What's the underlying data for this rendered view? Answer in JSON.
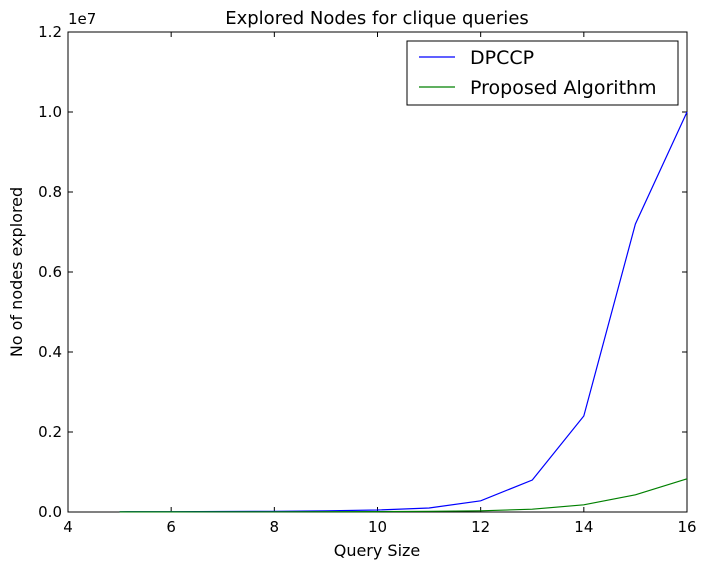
{
  "chart_data": {
    "type": "line",
    "title": "Explored Nodes for clique queries",
    "xlabel": "Query Size",
    "ylabel": "No of nodes explored",
    "y_scale_label": "1e7",
    "xlim": [
      4,
      16
    ],
    "ylim": [
      0,
      12000000
    ],
    "x_ticks": [
      4,
      6,
      8,
      10,
      12,
      14,
      16
    ],
    "x_tick_labels": [
      "4",
      "6",
      "8",
      "10",
      "12",
      "14",
      "16"
    ],
    "y_ticks": [
      0,
      2000000,
      4000000,
      6000000,
      8000000,
      10000000,
      12000000
    ],
    "y_tick_labels": [
      "0.0",
      "0.2",
      "0.4",
      "0.6",
      "0.8",
      "1.0",
      "1.2"
    ],
    "grid": false,
    "legend_position": "top-right",
    "x": [
      5,
      6,
      7,
      8,
      9,
      10,
      11,
      12,
      13,
      14,
      15,
      16
    ],
    "series": [
      {
        "name": "DPCCP",
        "color": "#0000ff",
        "values": [
          5000,
          8000,
          12000,
          18000,
          30000,
          50000,
          100000,
          280000,
          800000,
          2400000,
          7200000,
          10000000
        ]
      },
      {
        "name": "Proposed Algorithm",
        "color": "#008000",
        "values": [
          2000,
          3000,
          4000,
          5000,
          7000,
          10000,
          17000,
          30000,
          70000,
          180000,
          430000,
          830000
        ]
      }
    ]
  }
}
